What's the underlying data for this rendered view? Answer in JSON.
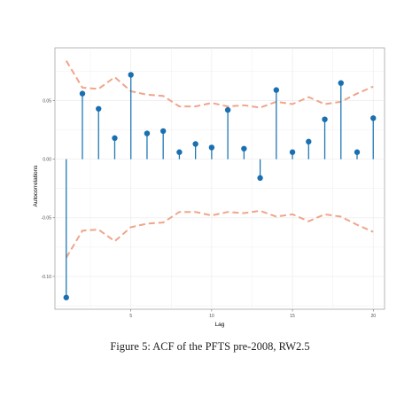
{
  "caption": "Figure 5: ACF of the PFTS pre-2008, RW2.5",
  "colors": {
    "stem": "#1f78b4",
    "point": "#1a6fb0",
    "band": "#f0a58a",
    "grid": "#ebebeb",
    "panel_border": "#999999"
  },
  "chart_data": {
    "type": "scatter",
    "xlabel": "Lag",
    "ylabel": "Autocorrelations",
    "xlim": [
      0.3,
      20.7
    ],
    "ylim": [
      -0.128,
      0.095
    ],
    "x_ticks": [
      5,
      10,
      15,
      20
    ],
    "y_ticks": [
      0.05,
      0.0,
      -0.05,
      -0.1
    ],
    "y_tick_labels": [
      "0.05",
      "0.00",
      "-0.05",
      "-0.10"
    ],
    "grid": true,
    "legend": "none",
    "series": [
      {
        "lags": [
          1,
          2,
          3,
          4,
          5,
          6,
          7,
          8,
          9,
          10,
          11,
          12,
          13,
          14,
          15,
          16,
          17,
          18,
          19,
          20
        ],
        "values": [
          -0.118,
          0.056,
          0.043,
          0.018,
          0.072,
          0.022,
          0.024,
          0.006,
          0.013,
          0.01,
          0.042,
          0.009,
          -0.016,
          0.059,
          0.006,
          0.015,
          0.034,
          0.065,
          0.006,
          0.035
        ]
      }
    ],
    "confidence_band": {
      "x": [
        1,
        2,
        3,
        4,
        5,
        6,
        7,
        8,
        9,
        10,
        11,
        12,
        13,
        14,
        15,
        16,
        17,
        18,
        19,
        20
      ],
      "upper": [
        0.084,
        0.061,
        0.06,
        0.07,
        0.058,
        0.055,
        0.054,
        0.045,
        0.045,
        0.048,
        0.045,
        0.046,
        0.044,
        0.049,
        0.047,
        0.053,
        0.047,
        0.049,
        0.056,
        0.062
      ],
      "lower": [
        -0.084,
        -0.061,
        -0.06,
        -0.07,
        -0.058,
        -0.055,
        -0.054,
        -0.045,
        -0.045,
        -0.048,
        -0.045,
        -0.046,
        -0.044,
        -0.049,
        -0.047,
        -0.053,
        -0.047,
        -0.049,
        -0.056,
        -0.062
      ]
    }
  }
}
